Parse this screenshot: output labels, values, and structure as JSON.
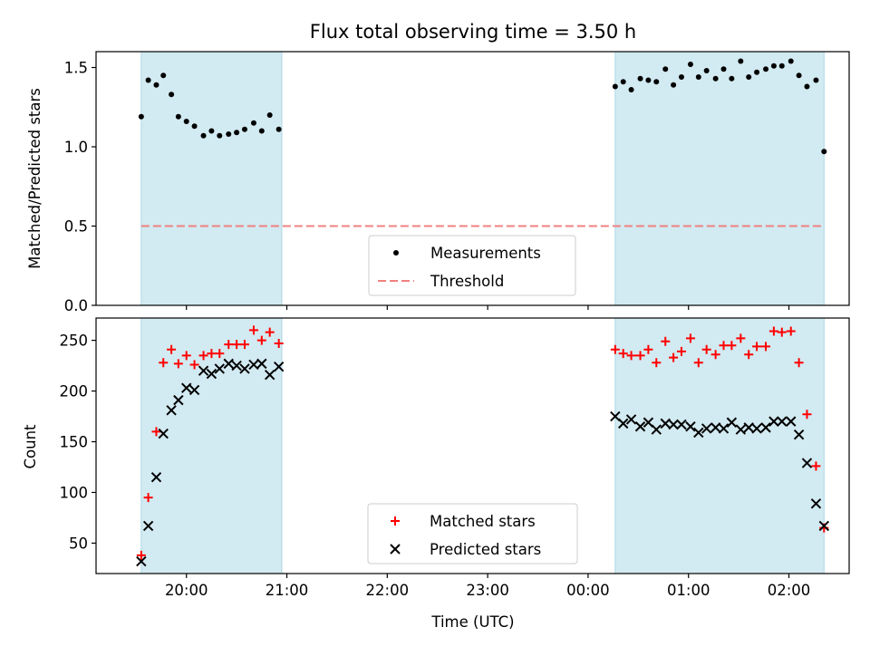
{
  "chart_data": [
    {
      "type": "scatter",
      "title": "Flux total observing time = 3.50 h",
      "xlabel": "",
      "ylabel": "Matched/Predicted stars",
      "ylim": [
        0,
        1.6
      ],
      "yticks": [
        0.0,
        0.5,
        1.0,
        1.5
      ],
      "ytick_labels": [
        "0.0",
        "0.5",
        "1.0",
        "1.5"
      ],
      "xlim_hours": [
        19.1,
        26.6
      ],
      "xticks_hours": [
        20,
        21,
        22,
        23,
        24,
        25,
        26
      ],
      "shaded_spans_hours": [
        [
          19.55,
          20.95
        ],
        [
          24.27,
          26.35
        ]
      ],
      "threshold": 0.5,
      "legend": {
        "position": "lower center",
        "entries": [
          "Measurements",
          "Threshold"
        ]
      },
      "colors": {
        "measurements": "#000000",
        "threshold": "#f08080",
        "shade": "#add8e6"
      },
      "series": [
        {
          "name": "Measurements",
          "points": [
            [
              19.55,
              1.19
            ],
            [
              19.62,
              1.42
            ],
            [
              19.7,
              1.39
            ],
            [
              19.77,
              1.45
            ],
            [
              19.85,
              1.33
            ],
            [
              19.92,
              1.19
            ],
            [
              20.0,
              1.16
            ],
            [
              20.08,
              1.13
            ],
            [
              20.17,
              1.07
            ],
            [
              20.25,
              1.1
            ],
            [
              20.33,
              1.07
            ],
            [
              20.42,
              1.08
            ],
            [
              20.5,
              1.09
            ],
            [
              20.58,
              1.11
            ],
            [
              20.67,
              1.15
            ],
            [
              20.75,
              1.1
            ],
            [
              20.83,
              1.2
            ],
            [
              20.92,
              1.11
            ],
            [
              24.27,
              1.38
            ],
            [
              24.35,
              1.41
            ],
            [
              24.43,
              1.36
            ],
            [
              24.52,
              1.43
            ],
            [
              24.6,
              1.42
            ],
            [
              24.68,
              1.41
            ],
            [
              24.77,
              1.49
            ],
            [
              24.85,
              1.39
            ],
            [
              24.93,
              1.44
            ],
            [
              25.02,
              1.52
            ],
            [
              25.1,
              1.44
            ],
            [
              25.18,
              1.48
            ],
            [
              25.27,
              1.43
            ],
            [
              25.35,
              1.49
            ],
            [
              25.43,
              1.43
            ],
            [
              25.52,
              1.54
            ],
            [
              25.6,
              1.44
            ],
            [
              25.68,
              1.47
            ],
            [
              25.77,
              1.49
            ],
            [
              25.85,
              1.51
            ],
            [
              25.93,
              1.51
            ],
            [
              26.02,
              1.54
            ],
            [
              26.1,
              1.45
            ],
            [
              26.18,
              1.38
            ],
            [
              26.27,
              1.42
            ],
            [
              26.35,
              0.97
            ]
          ]
        },
        {
          "name": "Threshold",
          "y": 0.5
        }
      ]
    },
    {
      "type": "scatter",
      "title": "",
      "xlabel": "Time (UTC)",
      "ylabel": "Count",
      "ylim": [
        20,
        272
      ],
      "yticks": [
        50,
        100,
        150,
        200,
        250
      ],
      "ytick_labels": [
        "50",
        "100",
        "150",
        "200",
        "250"
      ],
      "xlim_hours": [
        19.1,
        26.6
      ],
      "xticks_hours": [
        20,
        21,
        22,
        23,
        24,
        25,
        26
      ],
      "xtick_labels": [
        "20:00",
        "21:00",
        "22:00",
        "23:00",
        "00:00",
        "01:00",
        "02:00"
      ],
      "shaded_spans_hours": [
        [
          19.55,
          20.95
        ],
        [
          24.27,
          26.35
        ]
      ],
      "legend": {
        "position": "lower center",
        "entries": [
          "Matched stars",
          "Predicted stars"
        ]
      },
      "colors": {
        "matched": "#ff0000",
        "predicted": "#000000",
        "shade": "#add8e6"
      },
      "series": [
        {
          "name": "Matched stars",
          "points": [
            [
              19.55,
              38
            ],
            [
              19.62,
              95
            ],
            [
              19.7,
              160
            ],
            [
              19.77,
              228
            ],
            [
              19.85,
              241
            ],
            [
              19.92,
              227
            ],
            [
              20.0,
              235
            ],
            [
              20.08,
              226
            ],
            [
              20.17,
              235
            ],
            [
              20.25,
              237
            ],
            [
              20.33,
              237
            ],
            [
              20.42,
              246
            ],
            [
              20.5,
              246
            ],
            [
              20.58,
              246
            ],
            [
              20.67,
              260
            ],
            [
              20.75,
              250
            ],
            [
              20.83,
              258
            ],
            [
              20.92,
              247
            ],
            [
              24.27,
              241
            ],
            [
              24.35,
              237
            ],
            [
              24.43,
              235
            ],
            [
              24.52,
              235
            ],
            [
              24.6,
              241
            ],
            [
              24.68,
              228
            ],
            [
              24.77,
              249
            ],
            [
              24.85,
              233
            ],
            [
              24.93,
              239
            ],
            [
              25.02,
              252
            ],
            [
              25.1,
              228
            ],
            [
              25.18,
              241
            ],
            [
              25.27,
              236
            ],
            [
              25.35,
              245
            ],
            [
              25.43,
              245
            ],
            [
              25.52,
              252
            ],
            [
              25.6,
              236
            ],
            [
              25.68,
              244
            ],
            [
              25.77,
              244
            ],
            [
              25.85,
              259
            ],
            [
              25.93,
              258
            ],
            [
              26.02,
              259
            ],
            [
              26.1,
              228
            ],
            [
              26.18,
              177
            ],
            [
              26.27,
              126
            ],
            [
              26.35,
              65
            ]
          ]
        },
        {
          "name": "Predicted stars",
          "points": [
            [
              19.55,
              32
            ],
            [
              19.62,
              67
            ],
            [
              19.7,
              115
            ],
            [
              19.77,
              158
            ],
            [
              19.85,
              181
            ],
            [
              19.92,
              191
            ],
            [
              20.0,
              203
            ],
            [
              20.08,
              201
            ],
            [
              20.17,
              220
            ],
            [
              20.25,
              217
            ],
            [
              20.33,
              222
            ],
            [
              20.42,
              227
            ],
            [
              20.5,
              225
            ],
            [
              20.58,
              222
            ],
            [
              20.67,
              226
            ],
            [
              20.75,
              227
            ],
            [
              20.83,
              216
            ],
            [
              20.92,
              224
            ],
            [
              24.27,
              175
            ],
            [
              24.35,
              168
            ],
            [
              24.43,
              172
            ],
            [
              24.52,
              165
            ],
            [
              24.6,
              169
            ],
            [
              24.68,
              162
            ],
            [
              24.77,
              168
            ],
            [
              24.85,
              167
            ],
            [
              24.93,
              167
            ],
            [
              25.02,
              165
            ],
            [
              25.1,
              159
            ],
            [
              25.18,
              163
            ],
            [
              25.27,
              164
            ],
            [
              25.35,
              163
            ],
            [
              25.43,
              169
            ],
            [
              25.52,
              162
            ],
            [
              25.6,
              164
            ],
            [
              25.68,
              163
            ],
            [
              25.77,
              164
            ],
            [
              25.85,
              170
            ],
            [
              25.93,
              170
            ],
            [
              26.02,
              170
            ],
            [
              26.1,
              157
            ],
            [
              26.18,
              129
            ],
            [
              26.27,
              89
            ],
            [
              26.35,
              67
            ]
          ]
        }
      ]
    }
  ]
}
